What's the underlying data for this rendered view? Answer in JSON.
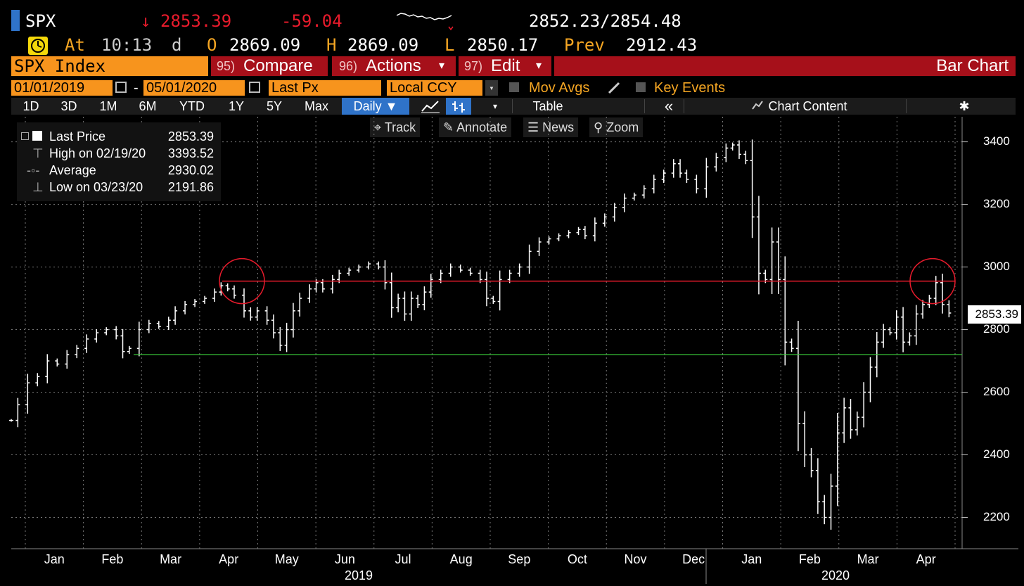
{
  "quote": {
    "ticker": "SPX",
    "arrow": "↓",
    "last": "2853.39",
    "change": "-59.04",
    "bid_ask": "2852.23/2854.48",
    "at_label": "At",
    "time": "10:13",
    "time_suffix": "d",
    "open_label": "O",
    "open": "2869.09",
    "high_label": "H",
    "high": "2869.09",
    "low_label": "L",
    "low": "2850.17",
    "prev_label": "Prev",
    "prev": "2912.43"
  },
  "toolbar": {
    "security": "SPX Index",
    "compare_num": "95)",
    "compare": "Compare",
    "actions_num": "96)",
    "actions": "Actions",
    "edit_num": "97)",
    "edit": "Edit",
    "caret": "▾",
    "title": "Bar Chart"
  },
  "params": {
    "start_date": "01/01/2019",
    "dash": "-",
    "end_date": "05/01/2020",
    "field": "Last Px",
    "currency": "Local CCY",
    "mov_avgs": "Mov Avgs",
    "key_events": "Key Events"
  },
  "tabs": {
    "d1": "1D",
    "d3": "3D",
    "m1": "1M",
    "m6": "6M",
    "ytd": "YTD",
    "y1": "1Y",
    "y5": "5Y",
    "max": "Max",
    "period": "Daily ▼",
    "table": "Table",
    "collapse": "«",
    "chart_content": "Chart Content"
  },
  "tools": {
    "track": "Track",
    "annotate": "Annotate",
    "news": "News",
    "zoom": "Zoom"
  },
  "legend": {
    "last_label": "Last Price",
    "last_value": "2853.39",
    "high_label": "High on 02/19/20",
    "high_value": "3393.52",
    "avg_label": "Average",
    "avg_value": "2930.02",
    "low_label": "Low on 03/23/20",
    "low_value": "2191.86"
  },
  "last_tag": "2853.39",
  "colors": {
    "amber": "#f5a623",
    "red": "#e81b2c",
    "orange_box": "#f7941d",
    "red_bar": "#a6101a",
    "selected_tab": "#2f73c9",
    "resistance_line": "#e81b2c",
    "support_line": "#38c838"
  },
  "chart_data": {
    "type": "bar",
    "series": [
      {
        "name": "SPX Index",
        "x": [
          "2019-01",
          "2019-02",
          "2019-03",
          "2019-04",
          "2019-05",
          "2019-06",
          "2019-07",
          "2019-08",
          "2019-09",
          "2019-10",
          "2019-11",
          "2019-12",
          "2020-01",
          "2020-02",
          "2020-03",
          "2020-04"
        ],
        "points": [
          [
            0,
            2510
          ],
          [
            4,
            2560
          ],
          [
            10,
            2630
          ],
          [
            16,
            2650
          ],
          [
            22,
            2700
          ],
          [
            28,
            2690
          ],
          [
            34,
            2720
          ],
          [
            40,
            2740
          ],
          [
            46,
            2770
          ],
          [
            52,
            2790
          ],
          [
            58,
            2800
          ],
          [
            64,
            2780
          ],
          [
            68,
            2730
          ],
          [
            72,
            2740
          ],
          [
            78,
            2800
          ],
          [
            84,
            2820
          ],
          [
            90,
            2810
          ],
          [
            96,
            2830
          ],
          [
            100,
            2860
          ],
          [
            106,
            2880
          ],
          [
            112,
            2890
          ],
          [
            118,
            2900
          ],
          [
            124,
            2920
          ],
          [
            128,
            2940
          ],
          [
            132,
            2930
          ],
          [
            136,
            2910
          ],
          [
            142,
            2860
          ],
          [
            146,
            2840
          ],
          [
            150,
            2860
          ],
          [
            156,
            2830
          ],
          [
            160,
            2790
          ],
          [
            164,
            2750
          ],
          [
            168,
            2800
          ],
          [
            172,
            2860
          ],
          [
            176,
            2900
          ],
          [
            182,
            2930
          ],
          [
            186,
            2950
          ],
          [
            190,
            2930
          ],
          [
            196,
            2960
          ],
          [
            200,
            2980
          ],
          [
            206,
            2990
          ],
          [
            212,
            3000
          ],
          [
            218,
            3010
          ],
          [
            224,
            3000
          ],
          [
            228,
            2950
          ],
          [
            232,
            2870
          ],
          [
            236,
            2900
          ],
          [
            240,
            2850
          ],
          [
            244,
            2900
          ],
          [
            248,
            2880
          ],
          [
            252,
            2920
          ],
          [
            256,
            2960
          ],
          [
            262,
            2980
          ],
          [
            268,
            3000
          ],
          [
            274,
            2990
          ],
          [
            280,
            2980
          ],
          [
            286,
            2960
          ],
          [
            290,
            2900
          ],
          [
            294,
            2890
          ],
          [
            298,
            2960
          ],
          [
            304,
            2980
          ],
          [
            310,
            3000
          ],
          [
            316,
            3050
          ],
          [
            322,
            3080
          ],
          [
            328,
            3090
          ],
          [
            334,
            3100
          ],
          [
            340,
            3110
          ],
          [
            346,
            3120
          ],
          [
            350,
            3100
          ],
          [
            356,
            3140
          ],
          [
            362,
            3160
          ],
          [
            368,
            3190
          ],
          [
            374,
            3220
          ],
          [
            380,
            3230
          ],
          [
            386,
            3250
          ],
          [
            392,
            3280
          ],
          [
            398,
            3300
          ],
          [
            404,
            3330
          ],
          [
            408,
            3300
          ],
          [
            412,
            3280
          ],
          [
            418,
            3250
          ],
          [
            424,
            3320
          ],
          [
            430,
            3350
          ],
          [
            436,
            3380
          ],
          [
            440,
            3390
          ],
          [
            444,
            3360
          ],
          [
            448,
            3340
          ],
          [
            452,
            3160
          ],
          [
            456,
            2980
          ],
          [
            460,
            2960
          ],
          [
            464,
            3080
          ],
          [
            468,
            2960
          ],
          [
            472,
            2760
          ],
          [
            476,
            2740
          ],
          [
            480,
            2500
          ],
          [
            484,
            2400
          ],
          [
            488,
            2350
          ],
          [
            492,
            2250
          ],
          [
            496,
            2200
          ],
          [
            500,
            2300
          ],
          [
            504,
            2470
          ],
          [
            508,
            2550
          ],
          [
            512,
            2480
          ],
          [
            516,
            2520
          ],
          [
            520,
            2600
          ],
          [
            524,
            2680
          ],
          [
            528,
            2760
          ],
          [
            532,
            2800
          ],
          [
            536,
            2790
          ],
          [
            540,
            2840
          ],
          [
            544,
            2760
          ],
          [
            548,
            2780
          ],
          [
            552,
            2850
          ],
          [
            556,
            2880
          ],
          [
            560,
            2900
          ],
          [
            564,
            2950
          ],
          [
            568,
            2880
          ],
          [
            572,
            2853
          ]
        ],
        "point_format": "[trading_day_index, close]"
      }
    ],
    "title": "",
    "xlabel": "",
    "ylabel": "",
    "ylim": [
      2100,
      3480
    ],
    "y_ticks": [
      2200,
      2400,
      2600,
      2800,
      3000,
      3200,
      3400
    ],
    "x_ticks": [
      "Jan",
      "Feb",
      "Mar",
      "Apr",
      "May",
      "Jun",
      "Jul",
      "Aug",
      "Sep",
      "Oct",
      "Nov",
      "Dec",
      "Jan",
      "Feb",
      "Mar",
      "Apr"
    ],
    "years": [
      "2019",
      "2020"
    ],
    "resistance_level": 2955,
    "support_level": 2720,
    "grid": true,
    "legend": "top-left"
  }
}
